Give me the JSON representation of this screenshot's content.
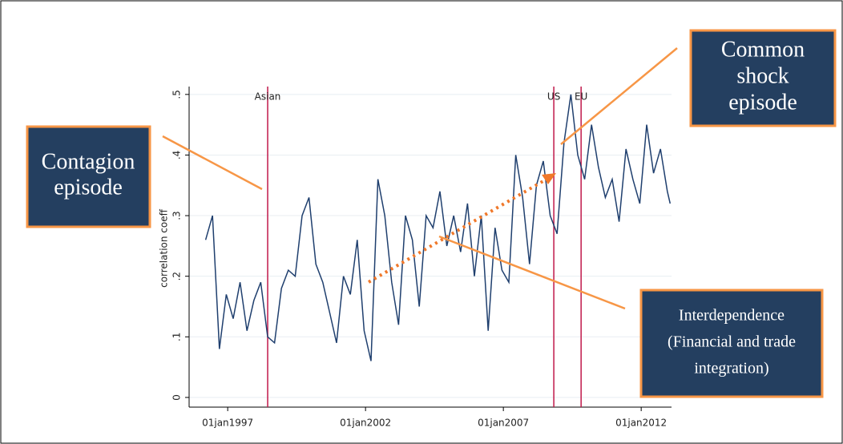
{
  "chart_data": {
    "type": "line",
    "y_label": "correlation coeff",
    "x": [
      1996.2,
      1996.45,
      1996.7,
      1996.95,
      1997.2,
      1997.45,
      1997.7,
      1997.95,
      1998.2,
      1998.45,
      1998.7,
      1998.95,
      1999.2,
      1999.45,
      1999.7,
      1999.95,
      2000.2,
      2000.45,
      2000.7,
      2000.95,
      2001.2,
      2001.45,
      2001.7,
      2001.95,
      2002.2,
      2002.45,
      2002.7,
      2002.95,
      2003.2,
      2003.45,
      2003.7,
      2003.95,
      2004.2,
      2004.45,
      2004.7,
      2004.95,
      2005.2,
      2005.45,
      2005.7,
      2005.95,
      2006.2,
      2006.45,
      2006.7,
      2006.95,
      2007.2,
      2007.45,
      2007.7,
      2007.95,
      2008.2,
      2008.45,
      2008.7,
      2008.95,
      2009.2,
      2009.45,
      2009.7,
      2009.95,
      2010.2,
      2010.45,
      2010.7,
      2010.95,
      2011.2,
      2011.45,
      2011.7,
      2011.95,
      2012.2,
      2012.45,
      2012.7,
      2012.95,
      2013.05
    ],
    "series": [
      {
        "color": "#1f3f6e",
        "values": [
          0.26,
          0.3,
          0.08,
          0.17,
          0.13,
          0.19,
          0.11,
          0.16,
          0.19,
          0.1,
          0.09,
          0.18,
          0.21,
          0.2,
          0.3,
          0.33,
          0.22,
          0.19,
          0.14,
          0.09,
          0.2,
          0.17,
          0.26,
          0.11,
          0.06,
          0.36,
          0.3,
          0.19,
          0.12,
          0.3,
          0.26,
          0.15,
          0.3,
          0.28,
          0.34,
          0.25,
          0.3,
          0.24,
          0.32,
          0.2,
          0.3,
          0.11,
          0.28,
          0.21,
          0.19,
          0.4,
          0.33,
          0.22,
          0.35,
          0.39,
          0.3,
          0.27,
          0.42,
          0.5,
          0.4,
          0.36,
          0.45,
          0.38,
          0.33,
          0.36,
          0.29,
          0.41,
          0.36,
          0.32,
          0.45,
          0.37,
          0.41,
          0.34,
          0.32
        ]
      }
    ],
    "xlim": [
      1995.6,
      2013.1
    ],
    "xticks": [
      {
        "value": 1997,
        "label": "01jan1997"
      },
      {
        "value": 2002,
        "label": "01jan2002"
      },
      {
        "value": 2007,
        "label": "01jan2007"
      },
      {
        "value": 2012,
        "label": "01jan2012"
      }
    ],
    "ylim": [
      -0.016,
      0.513
    ],
    "yticks": [
      0,
      {
        "value": 0.1,
        "label": ".1"
      },
      {
        "value": 0.2,
        "label": ".2"
      },
      {
        "value": 0.3,
        "label": ".3"
      },
      {
        "value": 0.4,
        "label": ".4"
      },
      {
        "value": 0.5,
        "label": ".5"
      }
    ],
    "grid": true,
    "events": [
      {
        "label": "Asian",
        "x": 1998.45
      },
      {
        "label": "US",
        "x": 2008.83
      },
      {
        "label": "EU",
        "x": 2009.82
      }
    ],
    "event_color": "#c0184a",
    "annotations": [
      {
        "lines": [
          "Contagion",
          "episode"
        ]
      },
      {
        "lines": [
          "Common",
          "shock",
          "episode"
        ]
      },
      {
        "lines": [
          "Interdependence",
          "(Financial and trade",
          "integration)"
        ]
      }
    ]
  }
}
